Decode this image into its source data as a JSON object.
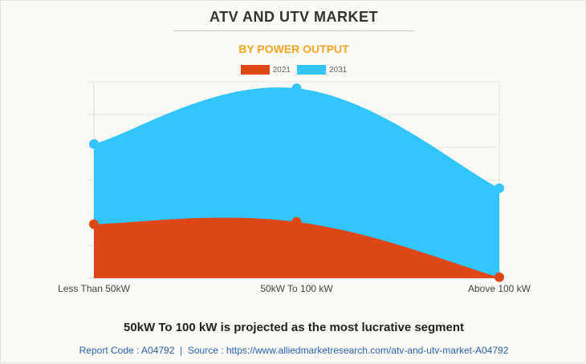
{
  "title": "ATV AND UTV MARKET",
  "subtitle": "BY POWER OUTPUT",
  "chart_data": {
    "type": "area",
    "title": "ATV AND UTV MARKET",
    "subtitle": "BY POWER OUTPUT",
    "categories": [
      "Less Than 50kW",
      "50kW To 100 kW",
      "Above 100 kW"
    ],
    "series": [
      {
        "name": "2021",
        "color": "#de4816",
        "values": [
          1.65,
          1.72,
          0.03
        ]
      },
      {
        "name": "2031",
        "color": "#33c5ff",
        "values": [
          4.1,
          5.8,
          2.75
        ]
      }
    ],
    "ylim": [
      0,
      6
    ],
    "grid": true,
    "legend": "top-center",
    "xlabel": "",
    "ylabel": ""
  },
  "footer": {
    "headline": "50kW To 100 kW is projected as the most lucrative segment",
    "source": "Report Code : A04792  |  Source : https://www.alliedmarketresearch.com/atv-and-utv-market-A04792"
  }
}
